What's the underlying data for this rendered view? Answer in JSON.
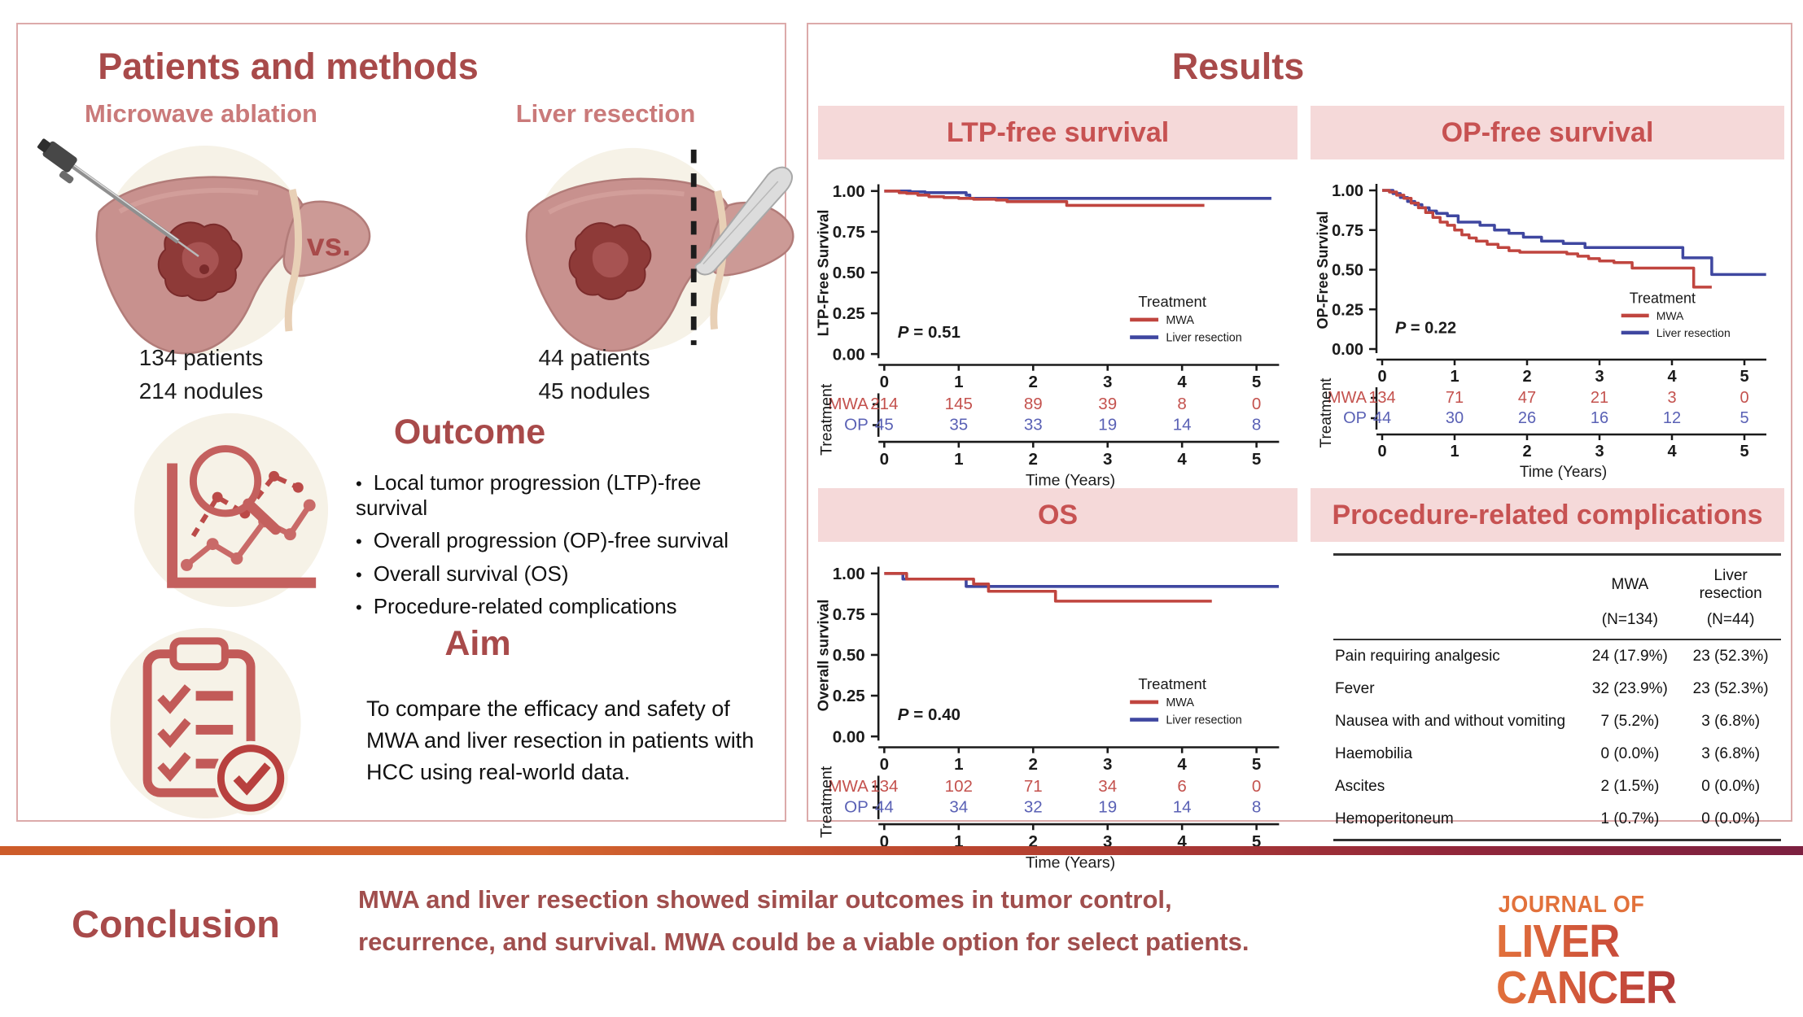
{
  "left_panel": {
    "title": "Patients and methods",
    "vs_label": "vs.",
    "mwa": {
      "label": "Microwave  ablation",
      "counts": [
        "134 patients",
        "214 nodules"
      ]
    },
    "resection": {
      "label": "Liver resection",
      "counts": [
        "44 patients",
        "45 nodules"
      ]
    },
    "outcome": {
      "title": "Outcome",
      "bullets": [
        "Local tumor progression (LTP)-free survival",
        "Overall progression (OP)-free survival",
        "Overall survival (OS)",
        "Procedure-related complications"
      ]
    },
    "aim": {
      "title": "Aim",
      "text": "To compare the efficacy and safety of MWA and liver resection in patients with HCC using real-world data."
    }
  },
  "right_panel": {
    "title": "Results"
  },
  "colors": {
    "accent_dark_red": "#a84a4a",
    "header_bar_bg": "#f5d9d9",
    "header_bar_text": "#c75252",
    "mwa_line": "#c0453f",
    "resection_line": "#3f47a0",
    "mwa_text": "#c4524e",
    "resection_text": "#5a61b5",
    "axis_black": "#1a1a1a"
  },
  "chart_data": [
    {
      "type": "line",
      "subtype": "kaplan-meier",
      "title": "LTP-free survival",
      "ylabel": "LTP-Free Survival",
      "xlabel": "Time (Years)",
      "p_label": "P = 0.51",
      "xlim": [
        0,
        5.3
      ],
      "ylim": [
        0,
        1
      ],
      "yticks": [
        "1.00",
        "0.75",
        "0.50",
        "0.25",
        "0.00"
      ],
      "xticks": [
        "0",
        "1",
        "2",
        "3",
        "4",
        "5"
      ],
      "legend": {
        "title": "Treatment",
        "entries": [
          {
            "name": "MWA",
            "color": "#c0453f"
          },
          {
            "name": "Liver resection",
            "color": "#3f47a0"
          }
        ]
      },
      "series": [
        {
          "name": "Liver resection",
          "color": "#3f47a0",
          "steps": [
            [
              0,
              1.0
            ],
            [
              0.35,
              0.995
            ],
            [
              0.55,
              0.99
            ],
            [
              1.1,
              0.975
            ],
            [
              1.15,
              0.955
            ],
            [
              5.2,
              0.955
            ]
          ]
        },
        {
          "name": "MWA",
          "color": "#c0453f",
          "steps": [
            [
              0,
              1.0
            ],
            [
              0.2,
              0.99
            ],
            [
              0.3,
              0.985
            ],
            [
              0.45,
              0.975
            ],
            [
              0.6,
              0.965
            ],
            [
              0.8,
              0.96
            ],
            [
              1.0,
              0.955
            ],
            [
              1.2,
              0.95
            ],
            [
              1.5,
              0.945
            ],
            [
              1.65,
              0.935
            ],
            [
              2.45,
              0.912
            ],
            [
              4.3,
              0.912
            ]
          ]
        }
      ],
      "risk_table": {
        "axis_label": "Treatment",
        "xlabel": "Time (Years)",
        "rows": [
          {
            "label": "MWA",
            "color": "#c4524e",
            "values": [
              "214",
              "145",
              "89",
              "39",
              "8",
              "0"
            ]
          },
          {
            "label": "OP",
            "color": "#5a61b5",
            "values": [
              "45",
              "35",
              "33",
              "19",
              "14",
              "8"
            ]
          }
        ]
      }
    },
    {
      "type": "line",
      "subtype": "kaplan-meier",
      "title": "OP-free survival",
      "ylabel": "OP-Free Survival",
      "xlabel": "Time (Years)",
      "p_label": "P = 0.22",
      "xlim": [
        0,
        5.3
      ],
      "ylim": [
        0,
        1
      ],
      "yticks": [
        "1.00",
        "0.75",
        "0.50",
        "0.25",
        "0.00"
      ],
      "xticks": [
        "0",
        "1",
        "2",
        "3",
        "4",
        "5"
      ],
      "legend": {
        "title": "Treatment",
        "entries": [
          {
            "name": "MWA",
            "color": "#c0453f"
          },
          {
            "name": "Liver resection",
            "color": "#3f47a0"
          }
        ]
      },
      "series": [
        {
          "name": "Liver resection",
          "color": "#3f47a0",
          "steps": [
            [
              0,
              1.0
            ],
            [
              0.15,
              0.98
            ],
            [
              0.25,
              0.955
            ],
            [
              0.35,
              0.93
            ],
            [
              0.45,
              0.91
            ],
            [
              0.55,
              0.89
            ],
            [
              0.65,
              0.87
            ],
            [
              0.75,
              0.855
            ],
            [
              0.9,
              0.84
            ],
            [
              1.05,
              0.8
            ],
            [
              1.35,
              0.78
            ],
            [
              1.55,
              0.75
            ],
            [
              1.75,
              0.73
            ],
            [
              1.95,
              0.705
            ],
            [
              2.2,
              0.68
            ],
            [
              2.5,
              0.665
            ],
            [
              2.8,
              0.64
            ],
            [
              4.15,
              0.575
            ],
            [
              4.55,
              0.47
            ],
            [
              5.3,
              0.47
            ]
          ]
        },
        {
          "name": "MWA",
          "color": "#c0453f",
          "steps": [
            [
              0,
              1.0
            ],
            [
              0.1,
              0.99
            ],
            [
              0.2,
              0.97
            ],
            [
              0.3,
              0.95
            ],
            [
              0.4,
              0.92
            ],
            [
              0.5,
              0.89
            ],
            [
              0.6,
              0.86
            ],
            [
              0.7,
              0.83
            ],
            [
              0.8,
              0.8
            ],
            [
              0.9,
              0.78
            ],
            [
              1.0,
              0.75
            ],
            [
              1.1,
              0.72
            ],
            [
              1.2,
              0.7
            ],
            [
              1.3,
              0.68
            ],
            [
              1.45,
              0.66
            ],
            [
              1.6,
              0.64
            ],
            [
              1.75,
              0.62
            ],
            [
              1.9,
              0.61
            ],
            [
              2.55,
              0.6
            ],
            [
              2.7,
              0.585
            ],
            [
              2.85,
              0.57
            ],
            [
              3.0,
              0.555
            ],
            [
              3.2,
              0.545
            ],
            [
              3.45,
              0.51
            ],
            [
              4.3,
              0.39
            ],
            [
              4.55,
              0.39
            ]
          ]
        }
      ],
      "risk_table": {
        "axis_label": "Treatment",
        "xlabel": "Time (Years)",
        "rows": [
          {
            "label": "MWA",
            "color": "#c4524e",
            "values": [
              "134",
              "71",
              "47",
              "21",
              "3",
              "0"
            ]
          },
          {
            "label": "OP",
            "color": "#5a61b5",
            "values": [
              "44",
              "30",
              "26",
              "16",
              "12",
              "5"
            ]
          }
        ]
      }
    },
    {
      "type": "line",
      "subtype": "kaplan-meier",
      "title": "OS",
      "ylabel": "Overall survival",
      "xlabel": "Time (Years)",
      "p_label": "P = 0.40",
      "xlim": [
        0,
        5.3
      ],
      "ylim": [
        0,
        1
      ],
      "yticks": [
        "1.00",
        "0.75",
        "0.50",
        "0.25",
        "0.00"
      ],
      "xticks": [
        "0",
        "1",
        "2",
        "3",
        "4",
        "5"
      ],
      "legend": {
        "title": "Treatment",
        "entries": [
          {
            "name": "MWA",
            "color": "#c0453f"
          },
          {
            "name": "Liver resection",
            "color": "#3f47a0"
          }
        ]
      },
      "series": [
        {
          "name": "Liver resection",
          "color": "#3f47a0",
          "steps": [
            [
              0,
              1.0
            ],
            [
              0.25,
              0.965
            ],
            [
              1.1,
              0.92
            ],
            [
              5.3,
              0.92
            ]
          ]
        },
        {
          "name": "MWA",
          "color": "#c0453f",
          "steps": [
            [
              0,
              1.0
            ],
            [
              0.3,
              0.965
            ],
            [
              1.2,
              0.935
            ],
            [
              1.4,
              0.89
            ],
            [
              2.3,
              0.83
            ],
            [
              4.4,
              0.83
            ]
          ]
        }
      ],
      "risk_table": {
        "axis_label": "Treatment",
        "xlabel": "Time (Years)",
        "rows": [
          {
            "label": "MWA",
            "color": "#c4524e",
            "values": [
              "134",
              "102",
              "71",
              "34",
              "6",
              "0"
            ]
          },
          {
            "label": "OP",
            "color": "#5a61b5",
            "values": [
              "44",
              "34",
              "32",
              "19",
              "14",
              "8"
            ]
          }
        ]
      }
    },
    {
      "type": "table",
      "title": "Procedure-related complications",
      "col_headers": [
        "MWA",
        "Liver resection"
      ],
      "col_subheaders": [
        "(N=134)",
        "(N=44)"
      ],
      "rows": [
        {
          "label": "Pain requiring analgesic",
          "values": [
            "24 (17.9%)",
            "23 (52.3%)"
          ]
        },
        {
          "label": "Fever",
          "values": [
            "32 (23.9%)",
            "23 (52.3%)"
          ]
        },
        {
          "label": "Nausea with and without vomiting",
          "values": [
            "7 (5.2%)",
            "3 (6.8%)"
          ]
        },
        {
          "label": "Haemobilia",
          "values": [
            "0 (0.0%)",
            "3 (6.8%)"
          ]
        },
        {
          "label": "Ascites",
          "values": [
            "2 (1.5%)",
            "0 (0.0%)"
          ]
        },
        {
          "label": "Hemoperitoneum",
          "values": [
            "1 (0.7%)",
            "0 (0.0%)"
          ]
        }
      ]
    }
  ],
  "conclusion": {
    "heading": "Conclusion",
    "lines": [
      "MWA and liver resection showed similar outcomes in tumor control,",
      "recurrence, and survival. MWA could be a viable option for select patients."
    ]
  },
  "logo": {
    "line1": "JOURNAL OF",
    "line2": "LIVER CANCER"
  }
}
